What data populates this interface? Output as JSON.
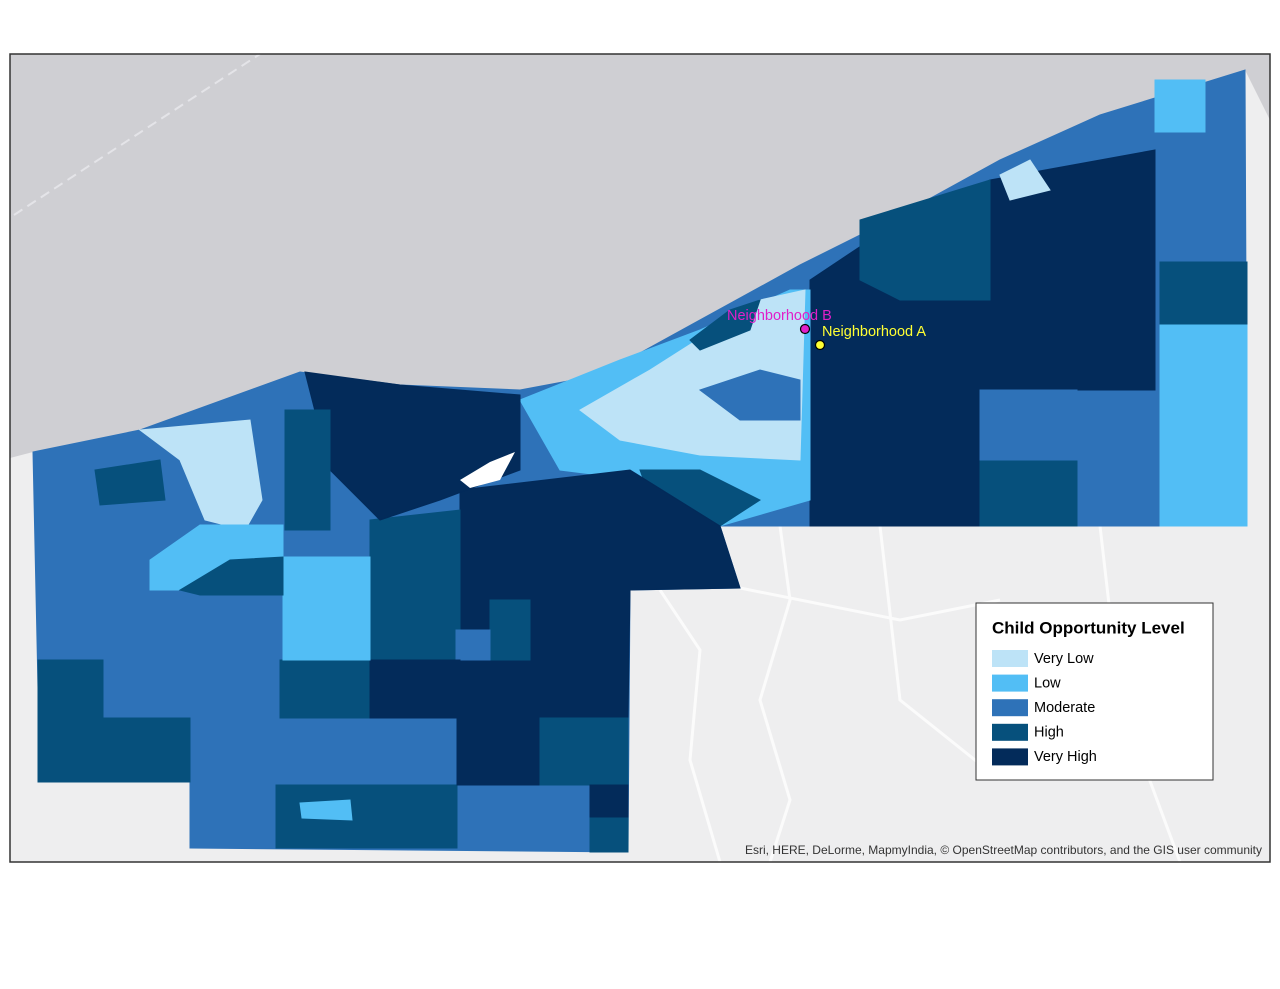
{
  "legend": {
    "title": "Child Opportunity Level",
    "items": [
      {
        "label": "Very Low",
        "color": "#bde3f7"
      },
      {
        "label": "Low",
        "color": "#52bef5"
      },
      {
        "label": "Moderate",
        "color": "#2e72b8"
      },
      {
        "label": "High",
        "color": "#06507c"
      },
      {
        "label": "Very High",
        "color": "#032b5a"
      }
    ]
  },
  "points": [
    {
      "label": "Neighborhood B",
      "color": "#e020c8"
    },
    {
      "label": "Neighborhood A",
      "color": "#ffff33"
    }
  ],
  "attribution": "Esri, HERE, DeLorme, MapmyIndia, © OpenStreetMap contributors, and the GIS user community"
}
